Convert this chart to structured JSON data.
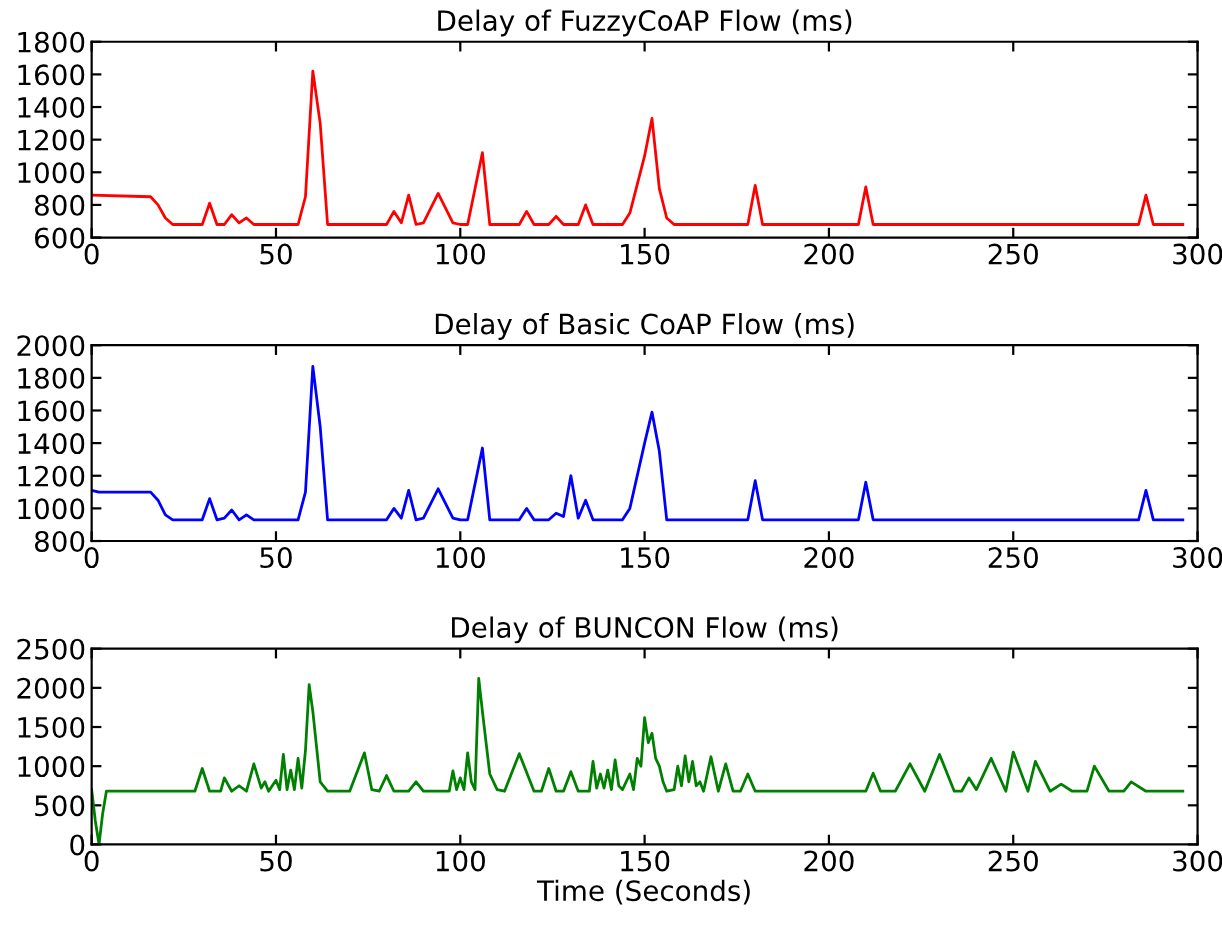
{
  "chart_data": [
    {
      "type": "line",
      "title": "Delay of FuzzyCoAP Flow (ms)",
      "xlim": [
        0,
        300
      ],
      "xticks": [
        0,
        50,
        100,
        150,
        200,
        250,
        300
      ],
      "ylim": [
        600,
        1800
      ],
      "yticks": [
        600,
        800,
        1000,
        1200,
        1400,
        1600,
        1800
      ],
      "series": [
        {
          "color": "#ff0000",
          "x": [
            0,
            16,
            18,
            20,
            22,
            30,
            32,
            34,
            36,
            38,
            40,
            42,
            44,
            56,
            58,
            60,
            62,
            64,
            80,
            82,
            84,
            86,
            88,
            90,
            94,
            98,
            100,
            102,
            106,
            108,
            116,
            118,
            120,
            124,
            126,
            128,
            132,
            134,
            136,
            144,
            146,
            150,
            152,
            154,
            156,
            158,
            178,
            180,
            182,
            208,
            210,
            212,
            284,
            286,
            288,
            296
          ],
          "values": [
            860,
            850,
            800,
            720,
            680,
            680,
            810,
            680,
            680,
            740,
            690,
            720,
            680,
            680,
            850,
            1620,
            1300,
            680,
            680,
            760,
            690,
            860,
            680,
            690,
            870,
            690,
            680,
            680,
            1120,
            680,
            680,
            760,
            680,
            680,
            730,
            680,
            680,
            800,
            680,
            680,
            750,
            1100,
            1330,
            900,
            720,
            680,
            680,
            920,
            680,
            680,
            910,
            680,
            680,
            860,
            680,
            680
          ]
        }
      ]
    },
    {
      "type": "line",
      "title": "Delay of Basic CoAP Flow (ms)",
      "xlim": [
        0,
        300
      ],
      "xticks": [
        0,
        50,
        100,
        150,
        200,
        250,
        300
      ],
      "ylim": [
        800,
        2000
      ],
      "yticks": [
        800,
        1000,
        1200,
        1400,
        1600,
        1800,
        2000
      ],
      "series": [
        {
          "color": "#0000ff",
          "x": [
            0,
            2,
            16,
            18,
            20,
            22,
            30,
            32,
            34,
            36,
            38,
            40,
            42,
            44,
            56,
            58,
            60,
            62,
            64,
            80,
            82,
            84,
            86,
            88,
            90,
            94,
            98,
            100,
            102,
            106,
            108,
            116,
            118,
            120,
            124,
            126,
            128,
            130,
            132,
            134,
            136,
            144,
            146,
            150,
            152,
            154,
            156,
            178,
            180,
            182,
            208,
            210,
            212,
            284,
            286,
            288,
            296
          ],
          "values": [
            1110,
            1100,
            1100,
            1050,
            960,
            930,
            930,
            1060,
            930,
            940,
            990,
            930,
            960,
            930,
            930,
            1100,
            1870,
            1500,
            930,
            930,
            1000,
            940,
            1110,
            930,
            940,
            1120,
            940,
            930,
            930,
            1370,
            930,
            930,
            1000,
            930,
            930,
            970,
            950,
            1200,
            940,
            1050,
            930,
            930,
            1000,
            1400,
            1590,
            1350,
            930,
            930,
            1170,
            930,
            930,
            1160,
            930,
            930,
            1110,
            930,
            930
          ]
        }
      ]
    },
    {
      "type": "line",
      "title": "Delay of BUNCON Flow (ms)",
      "xlabel": "Time (Seconds)",
      "xlim": [
        0,
        300
      ],
      "xticks": [
        0,
        50,
        100,
        150,
        200,
        250,
        300
      ],
      "ylim": [
        0,
        2500
      ],
      "yticks": [
        0,
        500,
        1000,
        1500,
        2000,
        2500
      ],
      "series": [
        {
          "color": "#008000",
          "x": [
            0,
            1,
            2,
            3,
            4,
            28,
            30,
            32,
            35,
            36,
            38,
            40,
            42,
            44,
            46,
            47,
            48,
            50,
            51,
            52,
            53,
            54,
            55,
            56,
            57,
            58,
            59,
            60,
            62,
            64,
            70,
            74,
            76,
            78,
            80,
            82,
            86,
            88,
            90,
            97,
            98,
            99,
            100,
            101,
            102,
            103,
            104,
            105,
            106,
            108,
            110,
            112,
            116,
            120,
            122,
            124,
            126,
            128,
            130,
            132,
            135,
            136,
            137,
            138,
            139,
            140,
            141,
            142,
            143,
            144,
            146,
            147,
            148,
            149,
            150,
            151,
            152,
            153,
            154,
            155,
            156,
            158,
            159,
            160,
            161,
            162,
            163,
            164,
            165,
            166,
            168,
            170,
            172,
            174,
            176,
            178,
            180,
            210,
            212,
            214,
            218,
            222,
            226,
            230,
            234,
            236,
            238,
            240,
            244,
            248,
            250,
            254,
            256,
            260,
            263,
            266,
            270,
            272,
            276,
            280,
            282,
            286,
            296
          ],
          "values": [
            700,
            300,
            0,
            400,
            680,
            680,
            970,
            680,
            680,
            850,
            680,
            750,
            680,
            1030,
            720,
            800,
            680,
            820,
            700,
            1150,
            700,
            950,
            700,
            1100,
            720,
            1200,
            2040,
            1700,
            800,
            680,
            680,
            1170,
            700,
            680,
            880,
            680,
            680,
            800,
            680,
            680,
            940,
            700,
            850,
            700,
            1170,
            800,
            700,
            2120,
            1700,
            900,
            700,
            680,
            1160,
            680,
            680,
            970,
            680,
            680,
            930,
            680,
            680,
            1060,
            720,
            900,
            720,
            950,
            700,
            1080,
            750,
            700,
            900,
            700,
            1100,
            1000,
            1620,
            1300,
            1420,
            1100,
            1000,
            800,
            680,
            700,
            1000,
            750,
            1130,
            800,
            1060,
            750,
            800,
            680,
            1120,
            680,
            1030,
            680,
            680,
            900,
            680,
            680,
            910,
            680,
            680,
            1030,
            680,
            1150,
            680,
            680,
            850,
            700,
            1100,
            680,
            1180,
            680,
            1060,
            680,
            770,
            680,
            680,
            1000,
            680,
            680,
            800,
            680,
            680
          ]
        }
      ]
    }
  ]
}
